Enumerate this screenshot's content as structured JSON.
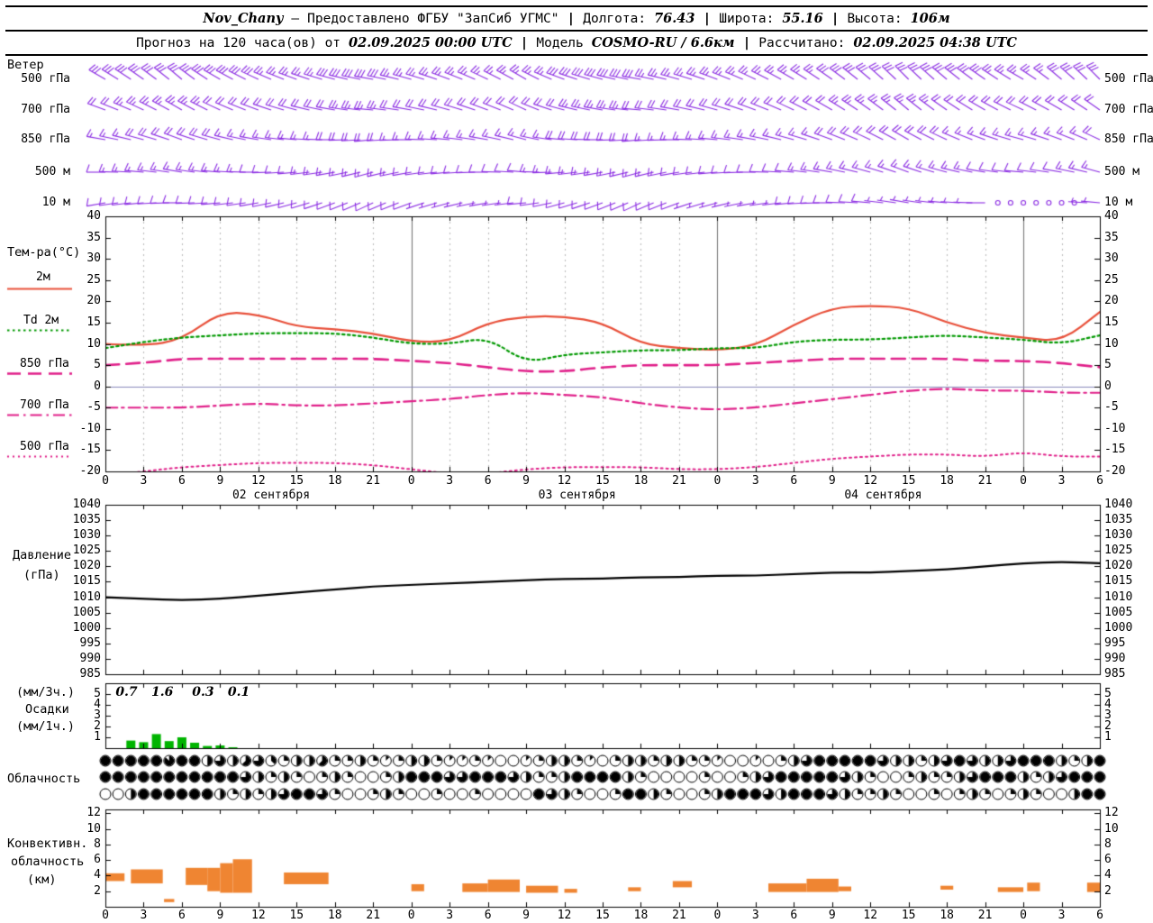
{
  "header": {
    "station": "Nov_Chany",
    "dash": "—",
    "provided": "Предоставлено ФГБУ \"ЗапСиб УГМС\"",
    "sep": "|",
    "lon_label": "Долгота:",
    "lon_value": "76.43",
    "lat_label": "Широта:",
    "lat_value": "55.16",
    "alt_label": "Высота:",
    "alt_value": "106м",
    "forecast_label": "Прогноз на 120 часа(ов) от",
    "run_time": "02.09.2025 00:00 UTC",
    "model_label": "Модель",
    "model_value": "COSMO-RU / 6.6км",
    "calc_label": "Рассчитано:",
    "calc_value": "02.09.2025 04:38 UTC"
  },
  "panels": {
    "wind_title": "Ветер",
    "temp_title": "Тем-ра(°C)",
    "pressure_title_1": "Давление",
    "pressure_title_2": "(гПа)",
    "precip_title_1": "(мм/3ч.)",
    "precip_title_2": "Осадки",
    "precip_title_3": "(мм/1ч.)",
    "cloud_title": "Облачность",
    "conv_title_1": "Конвективн.",
    "conv_title_2": "облачность",
    "conv_title_3": "(км)"
  },
  "x_axis": {
    "tick_labels": [
      "0",
      "3",
      "6",
      "9",
      "12",
      "15",
      "18",
      "21",
      "0",
      "3",
      "6",
      "9",
      "12",
      "15",
      "18",
      "21",
      "0",
      "3",
      "6",
      "9",
      "12",
      "15",
      "18",
      "21",
      "0",
      "3",
      "6"
    ],
    "dates": [
      {
        "label": "02 сентября",
        "h": 13
      },
      {
        "label": "03 сентября",
        "h": 37
      },
      {
        "label": "04 сентября",
        "h": 61
      }
    ]
  },
  "chart_data": [
    {
      "id": "wind",
      "type": "wind-barbs",
      "color": "#8a2be2",
      "x_hours_step": 3,
      "unit_speed": "m/s",
      "levels": [
        {
          "name": "500 гПа",
          "dir": [
            300,
            305,
            310,
            300,
            295,
            290,
            285,
            280,
            285,
            290,
            295,
            300,
            290,
            285,
            280,
            285,
            290,
            295,
            300,
            305,
            310,
            315,
            310,
            305,
            300,
            310,
            315
          ],
          "speed": [
            14,
            16,
            16,
            15,
            14,
            13,
            14,
            15,
            13,
            12,
            12,
            13,
            14,
            15,
            14,
            13,
            12,
            12,
            13,
            14,
            15,
            16,
            15,
            14,
            13,
            14,
            15
          ]
        },
        {
          "name": "700 гПа",
          "dir": [
            290,
            295,
            300,
            295,
            290,
            285,
            280,
            275,
            280,
            285,
            290,
            295,
            285,
            280,
            275,
            280,
            285,
            290,
            295,
            300,
            305,
            310,
            305,
            300,
            295,
            300,
            305
          ],
          "speed": [
            10,
            12,
            12,
            11,
            10,
            10,
            11,
            12,
            10,
            9,
            9,
            10,
            11,
            12,
            11,
            10,
            9,
            9,
            10,
            11,
            12,
            12,
            11,
            10,
            9,
            10,
            11
          ]
        },
        {
          "name": "850 гПа",
          "dir": [
            280,
            285,
            290,
            285,
            280,
            275,
            270,
            265,
            270,
            275,
            280,
            285,
            275,
            270,
            265,
            270,
            275,
            280,
            285,
            290,
            295,
            300,
            295,
            290,
            285,
            290,
            295
          ],
          "speed": [
            8,
            9,
            10,
            9,
            8,
            8,
            9,
            10,
            8,
            7,
            7,
            8,
            9,
            10,
            9,
            8,
            7,
            7,
            8,
            9,
            10,
            10,
            9,
            8,
            7,
            8,
            9
          ]
        },
        {
          "name": "500 м",
          "dir": [
            270,
            275,
            280,
            275,
            270,
            265,
            260,
            255,
            260,
            265,
            270,
            275,
            265,
            260,
            255,
            260,
            265,
            270,
            275,
            280,
            285,
            290,
            285,
            280,
            275,
            280,
            285
          ],
          "speed": [
            6,
            7,
            8,
            7,
            6,
            6,
            7,
            8,
            6,
            5,
            5,
            6,
            7,
            8,
            7,
            6,
            5,
            5,
            6,
            7,
            8,
            8,
            7,
            6,
            5,
            6,
            7
          ]
        },
        {
          "name": "10 м",
          "dir": [
            260,
            265,
            270,
            265,
            260,
            255,
            250,
            245,
            250,
            255,
            260,
            265,
            255,
            250,
            245,
            250,
            255,
            260,
            265,
            270,
            275,
            280,
            275,
            270,
            265,
            270,
            275
          ],
          "speed": [
            4,
            5,
            6,
            5,
            4,
            4,
            5,
            6,
            4,
            3,
            3,
            4,
            5,
            6,
            5,
            4,
            3,
            3,
            4,
            5,
            4,
            3,
            2,
            1,
            0,
            0,
            2
          ]
        }
      ]
    },
    {
      "id": "temperature",
      "type": "line",
      "x_hours": [
        0,
        3,
        6,
        9,
        12,
        15,
        18,
        21,
        24,
        27,
        30,
        33,
        36,
        39,
        42,
        45,
        48,
        51,
        54,
        57,
        60,
        63,
        66,
        69,
        72,
        75,
        78
      ],
      "ylim": [
        -20,
        40
      ],
      "yticks": [
        40,
        35,
        30,
        25,
        20,
        15,
        10,
        5,
        0,
        -5,
        -10,
        -15,
        -20
      ],
      "series": [
        {
          "name": "2м",
          "color": "#e8503a",
          "style": "solid",
          "values": [
            10,
            9.5,
            11,
            17.5,
            17,
            14,
            13.5,
            12.5,
            10.5,
            10.5,
            15,
            16.5,
            16.5,
            15,
            10,
            9,
            8.5,
            9.5,
            14.5,
            18.5,
            19,
            18.5,
            15,
            12.5,
            11.5,
            10.5,
            17.5
          ]
        },
        {
          "name": "Td 2м",
          "color": "#009900",
          "style": "dotted",
          "values": [
            9,
            10.5,
            11.5,
            12,
            12.5,
            12.5,
            12.5,
            11.5,
            10,
            10,
            11.5,
            5.5,
            7.5,
            8,
            8.5,
            8.5,
            9,
            9,
            10.5,
            11,
            11,
            11.5,
            12,
            11.5,
            11,
            10,
            12
          ]
        },
        {
          "name": "850 гПа",
          "color": "#e0218a",
          "style": "dashed",
          "values": [
            5,
            5.5,
            6.5,
            6.5,
            6.5,
            6.5,
            6.5,
            6.5,
            6,
            5.5,
            4.5,
            3.5,
            3.5,
            4.5,
            5,
            5,
            5,
            5.5,
            6,
            6.5,
            6.5,
            6.5,
            6.5,
            6,
            6,
            5.5,
            4.5
          ]
        },
        {
          "name": "700 гПа",
          "color": "#e0218a",
          "style": "dashdot",
          "values": [
            -5,
            -5,
            -5,
            -4.5,
            -4,
            -4.5,
            -4.5,
            -4,
            -3.5,
            -3,
            -2,
            -1.5,
            -2,
            -2.5,
            -4,
            -5,
            -5.5,
            -5,
            -4,
            -3,
            -2,
            -1,
            -0.5,
            -1,
            -1,
            -1.5,
            -1.5
          ]
        },
        {
          "name": "500 гПа",
          "color": "#e0218a",
          "style": "fine-dotted",
          "values": [
            -21,
            -20,
            -19,
            -18.5,
            -18,
            -18,
            -18,
            -18.5,
            -19.5,
            -20.5,
            -20.5,
            -19.5,
            -19,
            -19,
            -19,
            -19.5,
            -19.5,
            -19,
            -18,
            -17,
            -16.5,
            -16,
            -16,
            -16.5,
            -15.5,
            -16.5,
            -16.5
          ]
        }
      ]
    },
    {
      "id": "pressure",
      "type": "line",
      "ylim": [
        985,
        1040
      ],
      "yticks": [
        1040,
        1035,
        1030,
        1025,
        1020,
        1015,
        1010,
        1005,
        1000,
        995,
        990,
        985
      ],
      "series": [
        {
          "name": "Давление (гПа)",
          "color": "#000000",
          "style": "solid",
          "values": [
            1010,
            1009.5,
            1009,
            1009.5,
            1010.5,
            1011.5,
            1012.5,
            1013.5,
            1014,
            1014.5,
            1015,
            1015.5,
            1016,
            1016,
            1016.5,
            1016.5,
            1017,
            1017,
            1017.5,
            1018,
            1018,
            1018.5,
            1019,
            1020,
            1021,
            1021.5,
            1021
          ]
        }
      ]
    },
    {
      "id": "precipitation",
      "type": "bar",
      "color": "#00b400",
      "ylim": [
        0,
        6
      ],
      "yticks": [
        5,
        4,
        3,
        2,
        1
      ],
      "unit": "мм/1ч",
      "bars": [
        {
          "h": 2,
          "v": 0.7
        },
        {
          "h": 3,
          "v": 0.55
        },
        {
          "h": 4,
          "v": 1.3
        },
        {
          "h": 5,
          "v": 0.65
        },
        {
          "h": 6,
          "v": 1.0
        },
        {
          "h": 7,
          "v": 0.5
        },
        {
          "h": 8,
          "v": 0.2
        },
        {
          "h": 9,
          "v": 0.25
        },
        {
          "h": 10,
          "v": 0.08
        }
      ],
      "labels_3h": [
        {
          "h": 0.8,
          "text": "0.7"
        },
        {
          "h": 3.6,
          "text": "1.6"
        },
        {
          "h": 6.8,
          "text": "0.3"
        },
        {
          "h": 9.6,
          "text": "0.1"
        }
      ]
    },
    {
      "id": "cloud_cover",
      "type": "symbols",
      "scale_octas": 8,
      "hours": 79,
      "rows": [
        "8888878846456324452242124421121001244210244244221001024688888644246864468884248",
        "8888888888864242024200248886688864224888842000020024688888642002422468884246888",
        "0048888884242468862002420020020000864200288420024888648886422420020242024200488"
      ]
    },
    {
      "id": "convective_cloud",
      "type": "range-bar",
      "color": "#ef8532",
      "unit": "км",
      "ylim": [
        0,
        12.5
      ],
      "yticks": [
        12,
        10,
        8,
        6,
        4,
        2
      ],
      "bars": [
        {
          "h0": 0,
          "h1": 1.5,
          "base": 3.3,
          "top": 4.3
        },
        {
          "h0": 2,
          "h1": 4.5,
          "base": 3.0,
          "top": 4.8
        },
        {
          "h0": 4.6,
          "h1": 5.4,
          "base": 0.6,
          "top": 1.0
        },
        {
          "h0": 6.3,
          "h1": 8,
          "base": 2.8,
          "top": 5.0
        },
        {
          "h0": 8,
          "h1": 9,
          "base": 2.0,
          "top": 5.0
        },
        {
          "h0": 9,
          "h1": 10,
          "base": 1.8,
          "top": 5.6
        },
        {
          "h0": 10,
          "h1": 11.5,
          "base": 1.8,
          "top": 6.1
        },
        {
          "h0": 14,
          "h1": 17.5,
          "base": 2.9,
          "top": 4.4
        },
        {
          "h0": 24,
          "h1": 25,
          "base": 2.0,
          "top": 2.9
        },
        {
          "h0": 28,
          "h1": 30,
          "base": 1.9,
          "top": 3.0
        },
        {
          "h0": 30,
          "h1": 32.5,
          "base": 1.9,
          "top": 3.5
        },
        {
          "h0": 33,
          "h1": 35.5,
          "base": 1.8,
          "top": 2.7
        },
        {
          "h0": 36,
          "h1": 37,
          "base": 1.8,
          "top": 2.3
        },
        {
          "h0": 41,
          "h1": 42,
          "base": 2.0,
          "top": 2.5
        },
        {
          "h0": 44.5,
          "h1": 46,
          "base": 2.5,
          "top": 3.3
        },
        {
          "h0": 52,
          "h1": 55,
          "base": 1.9,
          "top": 3.0
        },
        {
          "h0": 55,
          "h1": 57.5,
          "base": 1.9,
          "top": 3.6
        },
        {
          "h0": 57.5,
          "h1": 58.5,
          "base": 2.0,
          "top": 2.6
        },
        {
          "h0": 65.5,
          "h1": 66.5,
          "base": 2.2,
          "top": 2.7
        },
        {
          "h0": 70,
          "h1": 72,
          "base": 1.9,
          "top": 2.5
        },
        {
          "h0": 72.3,
          "h1": 73.3,
          "base": 2.0,
          "top": 3.1
        },
        {
          "h0": 77,
          "h1": 78,
          "base": 1.9,
          "top": 3.1
        }
      ]
    }
  ]
}
